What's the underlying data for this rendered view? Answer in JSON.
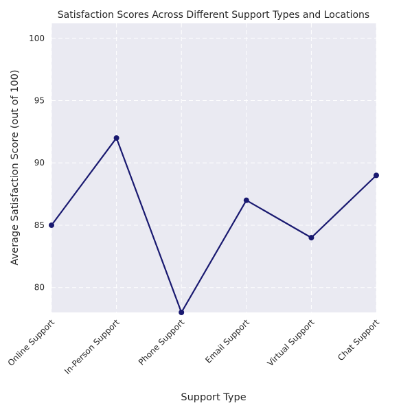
{
  "chart_data": {
    "type": "line",
    "title": "Satisfaction Scores Across Different Support Types and Locations",
    "xlabel": "Support Type",
    "ylabel": "Average Satisfaction Score (out of 100)",
    "categories": [
      "Online Support",
      "In-Person Support",
      "Phone Support",
      "Email Support",
      "Virtual Support",
      "Chat Support"
    ],
    "values": [
      85,
      92,
      78,
      87,
      84,
      89
    ],
    "ylim": [
      78,
      101.2
    ],
    "yticks": [
      80,
      85,
      90,
      95,
      100
    ],
    "grid": true,
    "line_color": "#191970",
    "background_color": "#eaeaf2"
  }
}
